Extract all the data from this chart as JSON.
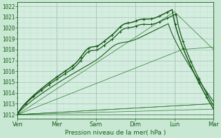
{
  "xlabel": "Pression niveau de la mer( hPa )",
  "bg_color": "#c8e8d4",
  "plot_bg_color": "#d4ede0",
  "grid_color_major": "#a8c8b8",
  "grid_color_minor": "#bcdccc",
  "line_color_dark": "#1a5c1a",
  "line_color_med": "#1a5c1a",
  "line_color_thin": "#2a7a2a",
  "ylim": [
    1011.6,
    1022.4
  ],
  "yticks": [
    1012,
    1013,
    1014,
    1015,
    1016,
    1017,
    1018,
    1019,
    1020,
    1021,
    1022
  ],
  "days": [
    "Ven",
    "Mer",
    "Sam",
    "Dim",
    "Lun",
    "Mar"
  ],
  "day_positions": [
    0,
    1,
    2,
    3,
    4,
    5
  ]
}
